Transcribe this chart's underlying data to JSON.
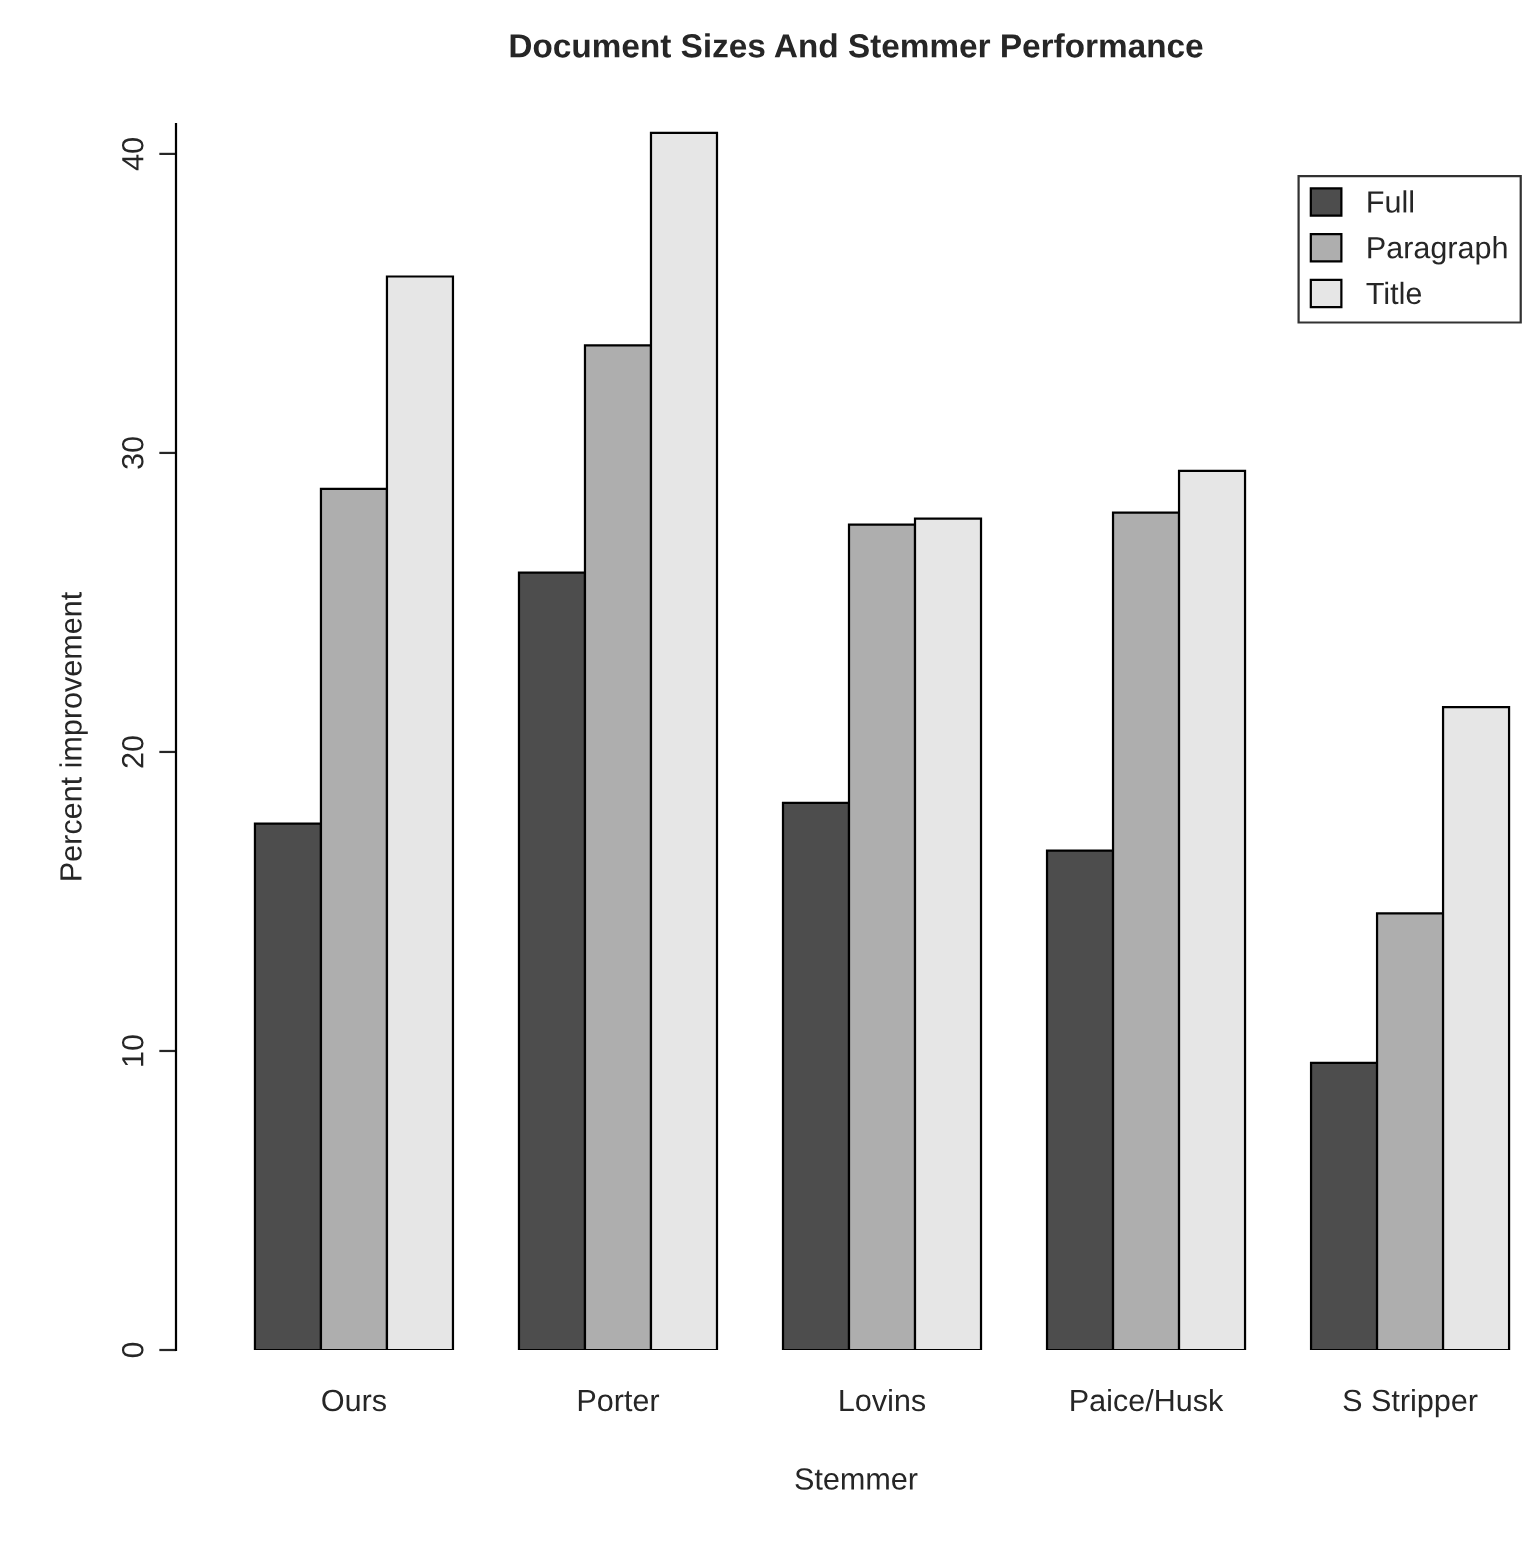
{
  "chart_data": {
    "type": "bar",
    "title": "Document Sizes And Stemmer Performance",
    "xlabel": "Stemmer",
    "ylabel": "Percent improvement",
    "categories": [
      "Ours",
      "Porter",
      "Lovins",
      "Paice/Husk",
      "S Stripper"
    ],
    "series": [
      {
        "name": "Full",
        "color": "#4d4d4d",
        "values": [
          17.6,
          26.0,
          18.3,
          16.7,
          9.6
        ]
      },
      {
        "name": "Paragraph",
        "color": "#aeaeae",
        "values": [
          28.8,
          33.6,
          27.6,
          28.0,
          14.6
        ]
      },
      {
        "name": "Title",
        "color": "#e6e6e6",
        "values": [
          35.9,
          40.7,
          27.8,
          29.4,
          21.5
        ]
      }
    ],
    "ylim": [
      0,
      41
    ],
    "yticks": [
      0,
      10,
      20,
      30,
      40
    ],
    "grid": false,
    "legend": "top right"
  }
}
